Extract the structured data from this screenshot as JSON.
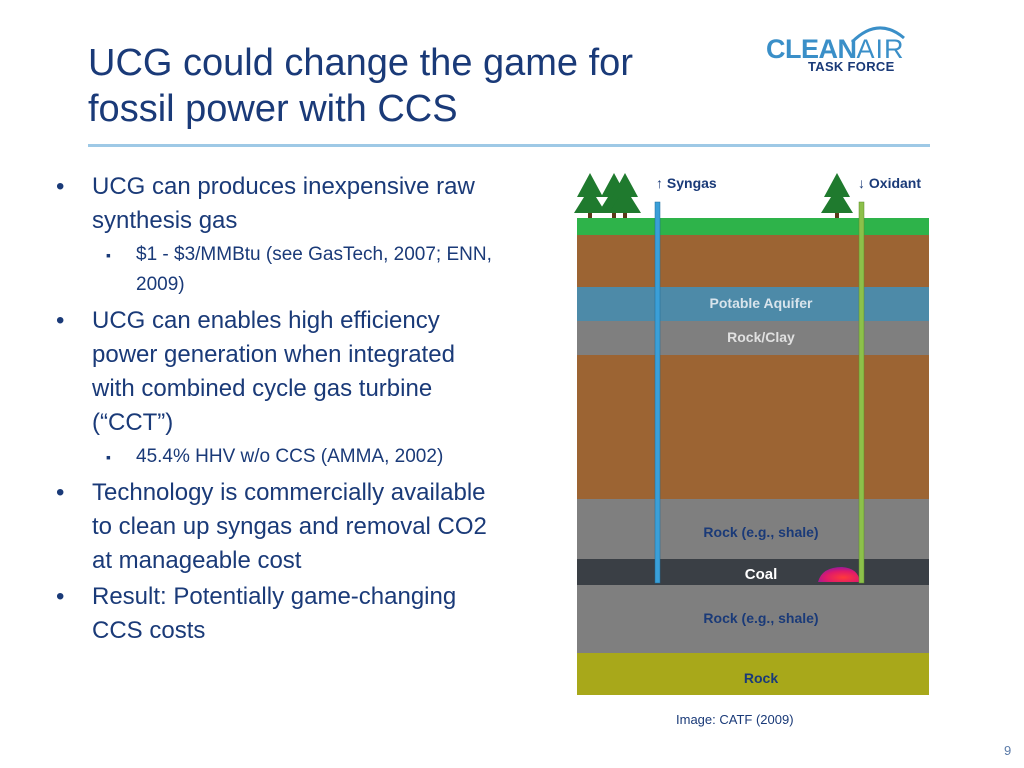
{
  "slide": {
    "title_line1": "UCG could change the game for",
    "title_line2": "fossil power with CCS",
    "page_number": "9",
    "caption": "Image: CATF (2009)"
  },
  "logo": {
    "word_clean": "CLEAN",
    "word_air": "AIR",
    "subtitle": "TASK FORCE"
  },
  "bullets": [
    {
      "level": 1,
      "text": "UCG can produces inexpensive raw synthesis gas"
    },
    {
      "level": 2,
      "text": "$1 - $3/MMBtu (see GasTech, 2007; ENN, 2009)"
    },
    {
      "level": 1,
      "text": "UCG can enables high efficiency power generation when integrated with combined cycle gas turbine (“CCT”)"
    },
    {
      "level": 2,
      "text": "45.4% HHV w/o CCS (AMMA, 2002)"
    },
    {
      "level": 1,
      "text": "Technology is commercially available to clean up syngas and removal CO2 at manageable cost"
    },
    {
      "level": 1,
      "text": "Result: Potentially game-changing CCS costs"
    }
  ],
  "diagram": {
    "syngas_label": "↑ Syngas",
    "oxidant_label": "↓ Oxidant",
    "layers": {
      "aquifer": "Potable Aquifer",
      "rockclay": "Rock/Clay",
      "shale_upper": "Rock (e.g., shale)",
      "coal": "Coal",
      "shale_lower": "Rock (e.g., shale)",
      "rock": "Rock"
    },
    "colors": {
      "grass": "#2eb34a",
      "soil": "#9c6433",
      "aquifer": "#4d8aa8",
      "gray_rock": "#7f7f7f",
      "coal": "#3a3f45",
      "bedrock": "#a8a81a",
      "syngas_pipe": "#3a9fd8",
      "oxidant_pipe": "#8cc04a",
      "tree": "#1f7a2e"
    }
  }
}
